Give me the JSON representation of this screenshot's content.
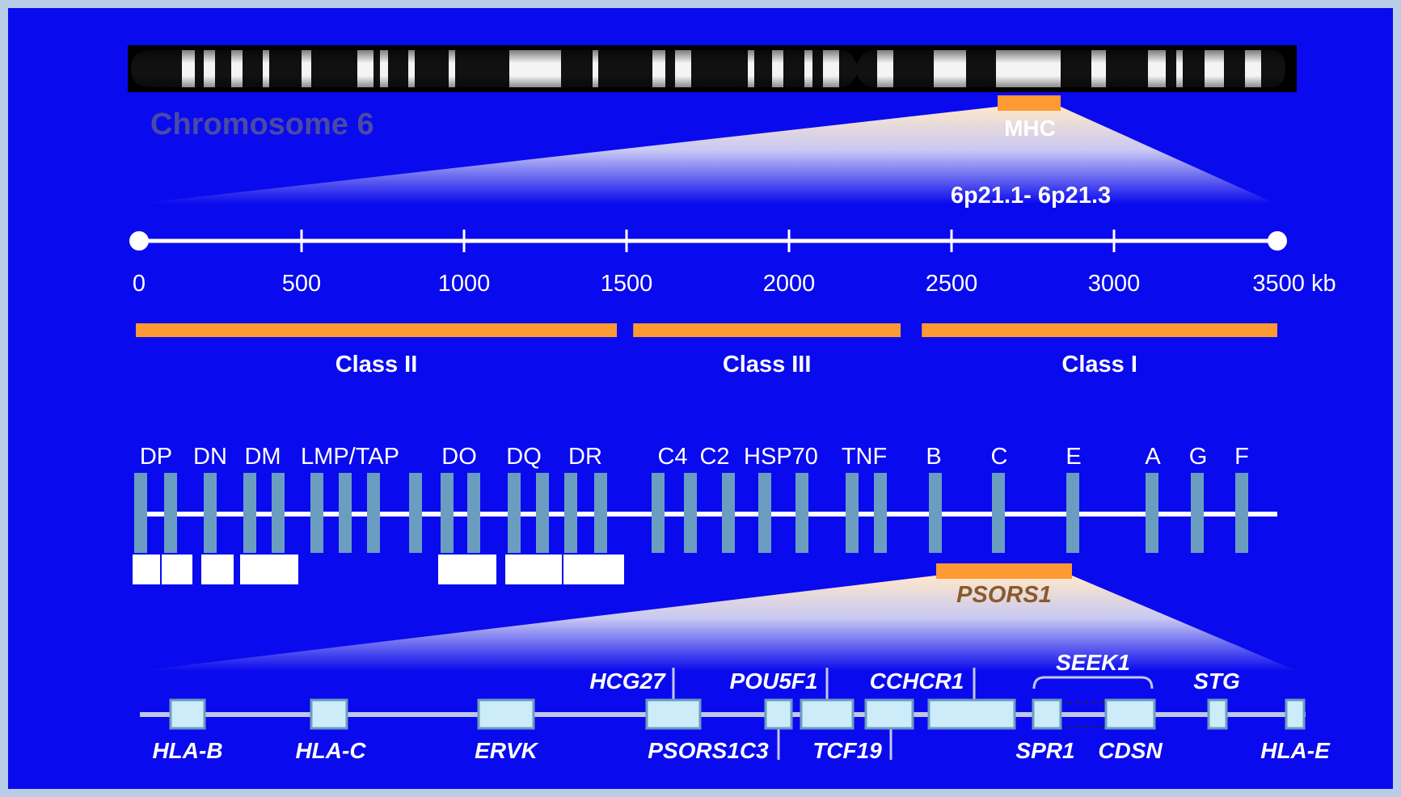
{
  "colors": {
    "background": "#0a0aee",
    "frame": "#b8cde6",
    "accent_orange": "#ff9933",
    "gene_bar": "#6b9dc0",
    "gene_box": "#ccecfa",
    "psors_text": "#8a5a2b",
    "chromosome_label": "#4a4aa6"
  },
  "chromosome": {
    "label": "Chromosome 6",
    "mhc_label": "MHC",
    "band_label": "6p21.1- 6p21.3"
  },
  "scale": {
    "ticks": [
      "0",
      "500",
      "1000",
      "1500",
      "2000",
      "2500",
      "3000",
      "3500 kb"
    ]
  },
  "classes": [
    {
      "label": "Class II",
      "start_kb": 0,
      "end_kb": 1475
    },
    {
      "label": "Class III",
      "start_kb": 1525,
      "end_kb": 2345
    },
    {
      "label": "Class I",
      "start_kb": 2410,
      "end_kb": 3500
    }
  ],
  "loci_labels": [
    "DP",
    "DN",
    "DM",
    "LMP/TAP",
    "DO",
    "DQ",
    "DR",
    "C4",
    "C2",
    "HSP70",
    "TNF",
    "B",
    "C",
    "E",
    "A",
    "G",
    "F"
  ],
  "psors1": {
    "label": "PSORS1"
  },
  "genes_above": [
    "HCG27",
    "POU5F1",
    "CCHCR1",
    "SEEK1",
    "STG"
  ],
  "genes_below": [
    "HLA-B",
    "HLA-C",
    "ERVK",
    "PSORS1C3",
    "TCF19",
    "SPR1",
    "CDSN",
    "HLA-E"
  ]
}
